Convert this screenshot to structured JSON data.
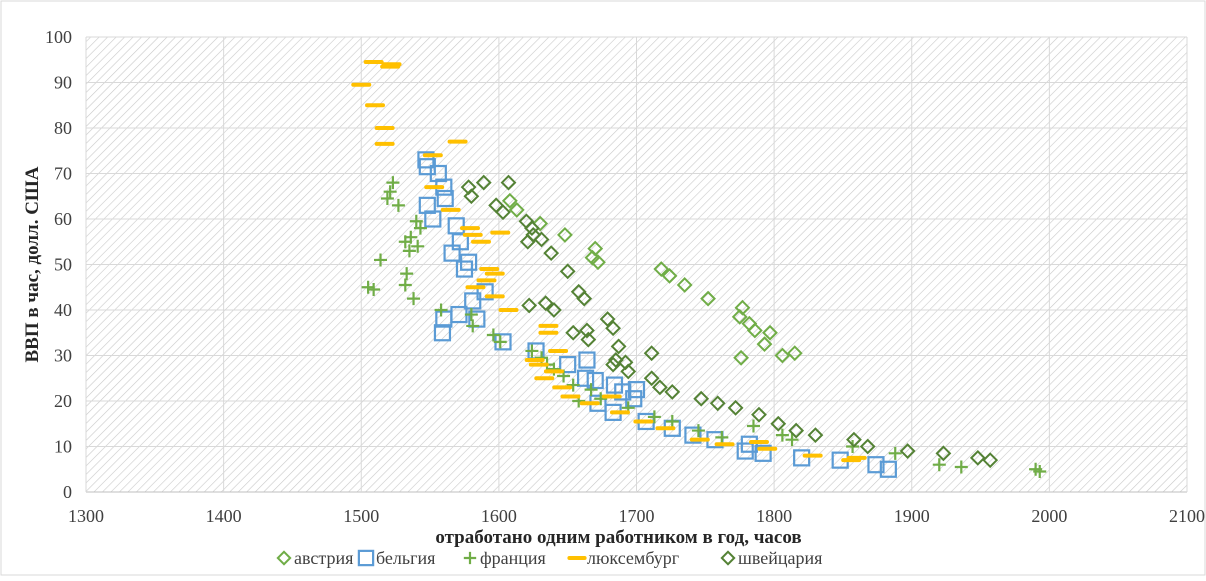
{
  "chart_data": {
    "type": "scatter",
    "title": "",
    "xlabel": "отработано одним работником в год, часов",
    "ylabel": "ВВП в час, долл. США",
    "xlim": [
      1300,
      2100
    ],
    "ylim": [
      0,
      100
    ],
    "x_ticks": [
      "1300",
      "1400",
      "1500",
      "1600",
      "1700",
      "1800",
      "1900",
      "2000",
      "2100"
    ],
    "y_ticks": [
      "0",
      "10",
      "20",
      "30",
      "40",
      "50",
      "60",
      "70",
      "80",
      "90",
      "100"
    ],
    "grid": true,
    "legend_position": "bottom",
    "series": [
      {
        "name": "австрия",
        "marker": "diamond",
        "color": "#70AD47",
        "points": [
          [
            1608,
            64
          ],
          [
            1613,
            62
          ],
          [
            1630,
            59
          ],
          [
            1648,
            56.5
          ],
          [
            1670,
            53.5
          ],
          [
            1668,
            51.5
          ],
          [
            1672,
            50.5
          ],
          [
            1718,
            49
          ],
          [
            1724,
            47.5
          ],
          [
            1735,
            45.5
          ],
          [
            1752,
            42.5
          ],
          [
            1777,
            40.5
          ],
          [
            1775,
            38.5
          ],
          [
            1782,
            37
          ],
          [
            1786,
            35.5
          ],
          [
            1797,
            35
          ],
          [
            1793,
            32.5
          ],
          [
            1806,
            30
          ],
          [
            1815,
            30.5
          ],
          [
            1776,
            29.5
          ]
        ]
      },
      {
        "name": "бельгия",
        "marker": "square",
        "color": "#5B9BD5",
        "points": [
          [
            1547,
            73
          ],
          [
            1548,
            71.5
          ],
          [
            1556,
            70
          ],
          [
            1560,
            67
          ],
          [
            1561,
            64.5
          ],
          [
            1548,
            63
          ],
          [
            1552,
            60
          ],
          [
            1569,
            58.5
          ],
          [
            1572,
            55
          ],
          [
            1566,
            52.5
          ],
          [
            1578,
            50.5
          ],
          [
            1575,
            49
          ],
          [
            1590,
            44
          ],
          [
            1581,
            42
          ],
          [
            1584,
            38
          ],
          [
            1571,
            39
          ],
          [
            1560,
            38
          ],
          [
            1559,
            35
          ],
          [
            1603,
            33
          ],
          [
            1627,
            31
          ],
          [
            1650,
            28
          ],
          [
            1664,
            29
          ],
          [
            1663,
            25
          ],
          [
            1670,
            24.5
          ],
          [
            1684,
            23.5
          ],
          [
            1690,
            22
          ],
          [
            1700,
            22.5
          ],
          [
            1698,
            20.5
          ],
          [
            1672,
            19.5
          ],
          [
            1683,
            17.5
          ],
          [
            1707,
            15.5
          ],
          [
            1726,
            14
          ],
          [
            1741,
            12.5
          ],
          [
            1757,
            11.5
          ],
          [
            1782,
            10.5
          ],
          [
            1779,
            9
          ],
          [
            1792,
            8.5
          ],
          [
            1820,
            7.5
          ],
          [
            1848,
            7
          ],
          [
            1874,
            6
          ],
          [
            1883,
            5
          ]
        ]
      },
      {
        "name": "франция",
        "marker": "plus",
        "color": "#70AD47",
        "points": [
          [
            1523,
            68
          ],
          [
            1521,
            66
          ],
          [
            1519,
            64.5
          ],
          [
            1527,
            63
          ],
          [
            1540,
            59.5
          ],
          [
            1543,
            58
          ],
          [
            1536,
            56
          ],
          [
            1532,
            55
          ],
          [
            1541,
            54
          ],
          [
            1535,
            53
          ],
          [
            1514,
            51
          ],
          [
            1533,
            48
          ],
          [
            1532,
            45.5
          ],
          [
            1505,
            45
          ],
          [
            1509,
            44.5
          ],
          [
            1538,
            42.5
          ],
          [
            1558,
            40
          ],
          [
            1580,
            39
          ],
          [
            1581,
            36.5
          ],
          [
            1596,
            34.5
          ],
          [
            1601,
            33
          ],
          [
            1624,
            31
          ],
          [
            1631,
            29.5
          ],
          [
            1635,
            28
          ],
          [
            1640,
            27
          ],
          [
            1647,
            25.5
          ],
          [
            1654,
            23.5
          ],
          [
            1667,
            22.5
          ],
          [
            1658,
            20
          ],
          [
            1674,
            20.5
          ],
          [
            1694,
            18.5
          ],
          [
            1713,
            16.5
          ],
          [
            1726,
            15.5
          ],
          [
            1745,
            13.5
          ],
          [
            1762,
            12
          ],
          [
            1785,
            14.5
          ],
          [
            1806,
            12.5
          ],
          [
            1813,
            11.5
          ],
          [
            1857,
            10
          ],
          [
            1888,
            8.5
          ],
          [
            1920,
            6
          ],
          [
            1936,
            5.5
          ],
          [
            1990,
            5
          ],
          [
            1993,
            4.5
          ]
        ]
      },
      {
        "name": "люксембург",
        "marker": "dash",
        "color": "#FFC000",
        "points": [
          [
            1509,
            94.5
          ],
          [
            1522,
            94
          ],
          [
            1521,
            93.5
          ],
          [
            1500,
            89.5
          ],
          [
            1510,
            85
          ],
          [
            1517,
            80
          ],
          [
            1517,
            76.5
          ],
          [
            1570,
            77
          ],
          [
            1552,
            74
          ],
          [
            1553,
            67
          ],
          [
            1565,
            62
          ],
          [
            1579,
            58
          ],
          [
            1581,
            56.5
          ],
          [
            1587,
            55
          ],
          [
            1601,
            57
          ],
          [
            1593,
            49
          ],
          [
            1597,
            48
          ],
          [
            1591,
            46.5
          ],
          [
            1583,
            45
          ],
          [
            1597,
            43
          ],
          [
            1607,
            40
          ],
          [
            1636,
            36.5
          ],
          [
            1636,
            35
          ],
          [
            1643,
            31
          ],
          [
            1626,
            29
          ],
          [
            1629,
            28
          ],
          [
            1640,
            26.5
          ],
          [
            1633,
            25
          ],
          [
            1646,
            23
          ],
          [
            1652,
            21
          ],
          [
            1666,
            19.5
          ],
          [
            1682,
            21
          ],
          [
            1688,
            17.5
          ],
          [
            1705,
            15.5
          ],
          [
            1721,
            14
          ],
          [
            1746,
            11.5
          ],
          [
            1764,
            10.5
          ],
          [
            1789,
            11
          ],
          [
            1795,
            9.5
          ],
          [
            1828,
            8
          ],
          [
            1860,
            7.5
          ],
          [
            1856,
            7
          ]
        ]
      },
      {
        "name": "швейцария",
        "marker": "diamond",
        "color": "#548235",
        "points": [
          [
            1578,
            67
          ],
          [
            1589,
            68
          ],
          [
            1607,
            68
          ],
          [
            1580,
            65
          ],
          [
            1598,
            63
          ],
          [
            1603,
            61.5
          ],
          [
            1620,
            59.5
          ],
          [
            1624,
            58
          ],
          [
            1625,
            56.5
          ],
          [
            1621,
            55
          ],
          [
            1631,
            55.5
          ],
          [
            1638,
            52.5
          ],
          [
            1650,
            48.5
          ],
          [
            1658,
            44
          ],
          [
            1662,
            42.5
          ],
          [
            1622,
            41
          ],
          [
            1634,
            41.5
          ],
          [
            1640,
            40
          ],
          [
            1654,
            35
          ],
          [
            1664,
            35.5
          ],
          [
            1665,
            33.5
          ],
          [
            1679,
            38
          ],
          [
            1683,
            36
          ],
          [
            1687,
            32
          ],
          [
            1685,
            29
          ],
          [
            1683,
            28
          ],
          [
            1692,
            28.5
          ],
          [
            1694,
            26.5
          ],
          [
            1711,
            30.5
          ],
          [
            1711,
            25
          ],
          [
            1717,
            23
          ],
          [
            1726,
            22
          ],
          [
            1747,
            20.5
          ],
          [
            1759,
            19.5
          ],
          [
            1772,
            18.5
          ],
          [
            1789,
            17
          ],
          [
            1803,
            15
          ],
          [
            1816,
            13.5
          ],
          [
            1830,
            12.5
          ],
          [
            1858,
            11.5
          ],
          [
            1868,
            10
          ],
          [
            1897,
            9
          ],
          [
            1923,
            8.5
          ],
          [
            1948,
            7.5
          ],
          [
            1957,
            7
          ]
        ]
      }
    ]
  }
}
